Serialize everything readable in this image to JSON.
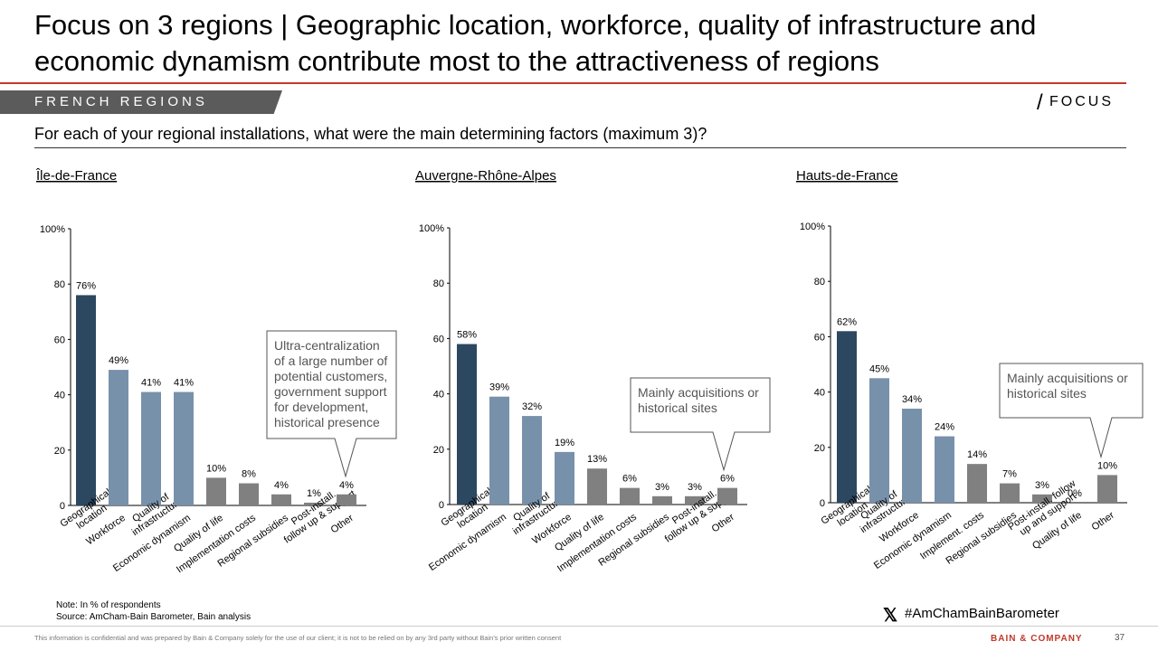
{
  "header": {
    "title": "Focus on 3 regions | Geographic location, workforce, quality of infrastructure and economic dynamism contribute most to the attractiveness of regions",
    "section": "FRENCH REGIONS",
    "tag": "FOCUS",
    "question": "For each of your regional installations, what were the main determining factors (maximum 3)?"
  },
  "footer": {
    "note": "Note: In % of respondents",
    "source": "Source: AmCham-Bain Barometer, Bain analysis",
    "hashtag": "#AmChamBainBarometer",
    "disclaimer": "This information is confidential and was prepared by Bain & Company solely for the use of our client; it is not to be relied on by any 3rd party without Bain's prior written consent",
    "brand": "BAIN & COMPANY",
    "page": "37"
  },
  "chart_data": [
    {
      "type": "bar",
      "title": "Île-de-France",
      "categories": [
        "Geographical\nlocation",
        "Workforce",
        "Quality of\ninfrastructure",
        "Economic dynamism",
        "Quality of life",
        "Implementation costs",
        "Regional subsidies",
        "Post-install.\nfollow up & support",
        "Other"
      ],
      "values": [
        76,
        49,
        41,
        41,
        10,
        8,
        4,
        1,
        4
      ],
      "value_labels": [
        "76%",
        "49%",
        "41%",
        "41%",
        "10%",
        "8%",
        "4%",
        "1%",
        "4%"
      ],
      "colors": [
        "#2c4760",
        "#7891ab",
        "#7891ab",
        "#7891ab",
        "#808080",
        "#808080",
        "#808080",
        "#808080",
        "#808080"
      ],
      "ylim": [
        0,
        100
      ],
      "yticks": [
        0,
        20,
        40,
        60,
        80,
        {
          "value": 100,
          "label": "100%"
        }
      ],
      "annotation": [
        "Ultra-centralization",
        "of a large number of",
        "potential customers,",
        "government support",
        "for development,",
        "historical presence"
      ]
    },
    {
      "type": "bar",
      "title": "Auvergne-Rhône-Alpes",
      "categories": [
        "Geographical\nlocation",
        "Economic dynamism",
        "Quality of\ninfrastructure",
        "Workforce",
        "Quality of life",
        "Implementation costs",
        "Regional subsidies",
        "Post-install.\nfollow up & support",
        "Other"
      ],
      "values": [
        58,
        39,
        32,
        19,
        13,
        6,
        3,
        3,
        6
      ],
      "value_labels": [
        "58%",
        "39%",
        "32%",
        "19%",
        "13%",
        "6%",
        "3%",
        "3%",
        "6%"
      ],
      "colors": [
        "#2c4760",
        "#7891ab",
        "#7891ab",
        "#7891ab",
        "#808080",
        "#808080",
        "#808080",
        "#808080",
        "#808080"
      ],
      "ylim": [
        0,
        100
      ],
      "yticks": [
        0,
        20,
        40,
        60,
        80,
        {
          "value": 100,
          "label": "100%"
        }
      ],
      "annotation": [
        "Mainly acquisitions or",
        "historical sites"
      ]
    },
    {
      "type": "bar",
      "title": "Hauts-de-France",
      "categories": [
        "Geographical\nlocation",
        "Quality of\ninfrastructure",
        "Workforce",
        "Economic dynamism",
        "Implement. costs",
        "Regional subsidies",
        "Post-install. follow\nup and support",
        "Quality of life",
        "Other"
      ],
      "values": [
        62,
        45,
        34,
        24,
        14,
        7,
        3,
        0,
        10
      ],
      "value_labels": [
        "62%",
        "45%",
        "34%",
        "24%",
        "14%",
        "7%",
        "3%",
        "0%",
        "10%"
      ],
      "colors": [
        "#2c4760",
        "#7891ab",
        "#7891ab",
        "#7891ab",
        "#808080",
        "#808080",
        "#808080",
        "#808080",
        "#808080"
      ],
      "ylim": [
        0,
        100
      ],
      "yticks": [
        0,
        20,
        40,
        60,
        80,
        {
          "value": 100,
          "label": "100%"
        }
      ],
      "annotation": [
        "Mainly acquisitions or",
        "historical sites"
      ]
    }
  ]
}
